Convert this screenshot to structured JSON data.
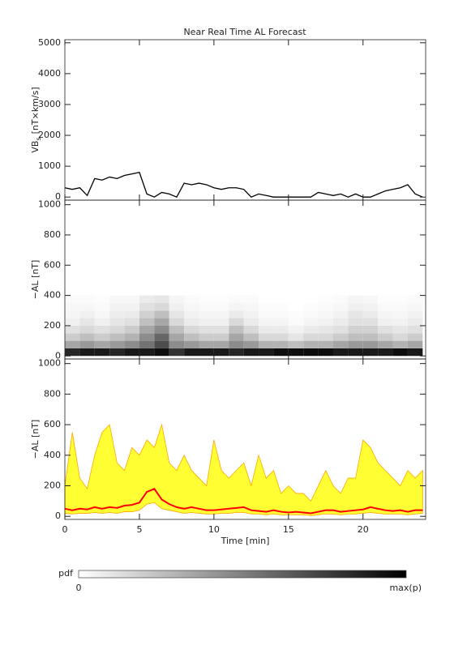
{
  "chart_data": [
    {
      "type": "line",
      "title": "Near Real Time AL Forecast",
      "ylabel_main": "VB",
      "ylabel_sub": "s",
      "ylabel_unit": "[nT×km/s]",
      "xlim": [
        0,
        24.2
      ],
      "xticks": [
        0,
        5,
        10,
        15,
        20
      ],
      "ylim": [
        -100,
        5100
      ],
      "yticks": [
        0,
        1000,
        2000,
        3000,
        4000,
        5000
      ],
      "x": [
        0,
        0.5,
        1,
        1.5,
        2,
        2.5,
        3,
        3.5,
        4,
        4.5,
        5,
        5.5,
        6,
        6.5,
        7,
        7.5,
        8,
        8.5,
        9,
        9.5,
        10,
        10.5,
        11,
        11.5,
        12,
        12.5,
        13,
        13.5,
        14,
        14.5,
        15,
        15.5,
        16,
        16.5,
        17,
        17.5,
        18,
        18.5,
        19,
        19.5,
        20,
        20.5,
        21,
        21.5,
        22,
        22.5,
        23,
        23.5,
        24
      ],
      "values": [
        300,
        250,
        300,
        50,
        600,
        550,
        650,
        600,
        700,
        750,
        800,
        100,
        0,
        150,
        100,
        0,
        450,
        400,
        450,
        400,
        300,
        250,
        300,
        300,
        250,
        0,
        100,
        50,
        0,
        0,
        0,
        0,
        0,
        0,
        150,
        100,
        50,
        100,
        0,
        100,
        0,
        0,
        100,
        200,
        250,
        300,
        400,
        100,
        0
      ],
      "color": "#000000"
    },
    {
      "type": "heatmap",
      "ylabel": "−AL [nT]",
      "xlim": [
        0,
        24.2
      ],
      "xticks": [
        0,
        5,
        10,
        15,
        20
      ],
      "ylim": [
        -20,
        1030
      ],
      "yticks": [
        0,
        200,
        400,
        600,
        800,
        1000
      ],
      "xbins": [
        0,
        1,
        2,
        3,
        4,
        5,
        6,
        7,
        8,
        9,
        10,
        11,
        12,
        13,
        14,
        15,
        16,
        17,
        18,
        19,
        20,
        21,
        22,
        23,
        24
      ],
      "ybins": [
        0,
        50,
        100,
        150,
        200,
        250,
        300,
        350,
        400
      ],
      "z": [
        [
          0.85,
          0.9,
          0.9,
          0.85,
          0.9,
          0.9,
          0.95,
          0.8,
          0.9,
          0.9,
          0.9,
          0.85,
          0.9,
          0.9,
          0.95,
          0.95,
          0.95,
          0.95,
          0.9,
          0.9,
          0.9,
          0.9,
          0.95,
          0.9
        ],
        [
          0.35,
          0.4,
          0.35,
          0.4,
          0.45,
          0.55,
          0.7,
          0.45,
          0.4,
          0.35,
          0.35,
          0.45,
          0.4,
          0.3,
          0.3,
          0.25,
          0.3,
          0.3,
          0.35,
          0.4,
          0.4,
          0.35,
          0.3,
          0.35
        ],
        [
          0.2,
          0.25,
          0.2,
          0.25,
          0.3,
          0.45,
          0.6,
          0.35,
          0.25,
          0.2,
          0.2,
          0.35,
          0.25,
          0.15,
          0.15,
          0.1,
          0.15,
          0.15,
          0.2,
          0.25,
          0.25,
          0.2,
          0.15,
          0.2
        ],
        [
          0.12,
          0.15,
          0.12,
          0.15,
          0.2,
          0.35,
          0.45,
          0.25,
          0.15,
          0.12,
          0.12,
          0.25,
          0.15,
          0.08,
          0.08,
          0.05,
          0.08,
          0.1,
          0.12,
          0.18,
          0.18,
          0.12,
          0.1,
          0.12
        ],
        [
          0.06,
          0.1,
          0.06,
          0.1,
          0.12,
          0.25,
          0.35,
          0.15,
          0.08,
          0.06,
          0.06,
          0.15,
          0.08,
          0.04,
          0.04,
          0.02,
          0.04,
          0.05,
          0.08,
          0.12,
          0.12,
          0.06,
          0.05,
          0.08
        ],
        [
          0.04,
          0.06,
          0.03,
          0.07,
          0.08,
          0.18,
          0.25,
          0.1,
          0.05,
          0.04,
          0.04,
          0.08,
          0.05,
          0.02,
          0.02,
          0.01,
          0.02,
          0.03,
          0.05,
          0.1,
          0.08,
          0.04,
          0.03,
          0.05
        ],
        [
          0.03,
          0.03,
          0.02,
          0.05,
          0.05,
          0.12,
          0.15,
          0.06,
          0.03,
          0.02,
          0.02,
          0.04,
          0.03,
          0.01,
          0.01,
          0,
          0.01,
          0.02,
          0.03,
          0.06,
          0.05,
          0.02,
          0.02,
          0.03
        ],
        [
          0.02,
          0.02,
          0.01,
          0.03,
          0.03,
          0.08,
          0.1,
          0.04,
          0.02,
          0.01,
          0.01,
          0.02,
          0.02,
          0,
          0,
          0,
          0,
          0.01,
          0.02,
          0.04,
          0.03,
          0.01,
          0.01,
          0.02
        ]
      ]
    },
    {
      "type": "band",
      "ylabel": "−AL [nT]",
      "xlabel": "Time [min]",
      "xlim": [
        0,
        24.2
      ],
      "xticks": [
        0,
        5,
        10,
        15,
        20
      ],
      "ylim": [
        -20,
        1030
      ],
      "yticks": [
        0,
        200,
        400,
        600,
        800,
        1000
      ],
      "x": [
        0,
        0.5,
        1,
        1.5,
        2,
        2.5,
        3,
        3.5,
        4,
        4.5,
        5,
        5.5,
        6,
        6.5,
        7,
        7.5,
        8,
        8.5,
        9,
        9.5,
        10,
        10.5,
        11,
        11.5,
        12,
        12.5,
        13,
        13.5,
        14,
        14.5,
        15,
        15.5,
        16,
        16.5,
        17,
        17.5,
        18,
        18.5,
        19,
        19.5,
        20,
        20.5,
        21,
        21.5,
        22,
        22.5,
        23,
        23.5,
        24
      ],
      "upper": [
        200,
        550,
        250,
        180,
        400,
        550,
        600,
        350,
        300,
        450,
        400,
        500,
        450,
        600,
        350,
        300,
        400,
        300,
        250,
        200,
        500,
        300,
        250,
        300,
        350,
        200,
        400,
        250,
        300,
        150,
        200,
        150,
        150,
        100,
        200,
        300,
        200,
        150,
        250,
        250,
        500,
        450,
        350,
        300,
        250,
        200,
        300,
        250,
        300
      ],
      "lower": [
        20,
        15,
        20,
        20,
        25,
        20,
        25,
        20,
        30,
        30,
        40,
        80,
        90,
        50,
        40,
        30,
        20,
        25,
        20,
        15,
        15,
        20,
        20,
        25,
        25,
        15,
        15,
        10,
        15,
        10,
        10,
        10,
        10,
        5,
        10,
        15,
        15,
        10,
        15,
        15,
        20,
        25,
        20,
        15,
        15,
        15,
        10,
        15,
        20
      ],
      "median": [
        50,
        40,
        50,
        45,
        60,
        50,
        60,
        55,
        70,
        75,
        90,
        160,
        180,
        110,
        80,
        60,
        50,
        60,
        50,
        40,
        40,
        45,
        50,
        55,
        60,
        40,
        35,
        30,
        40,
        30,
        25,
        30,
        25,
        20,
        30,
        40,
        40,
        30,
        35,
        40,
        45,
        60,
        50,
        40,
        35,
        40,
        30,
        40,
        40
      ],
      "band_color": "#ffff33",
      "edge_color": "#ffa500",
      "median_color": "#ff0000"
    }
  ],
  "colorbar": {
    "label": "pdf",
    "min_label": "0",
    "max_label": "max(p)"
  }
}
